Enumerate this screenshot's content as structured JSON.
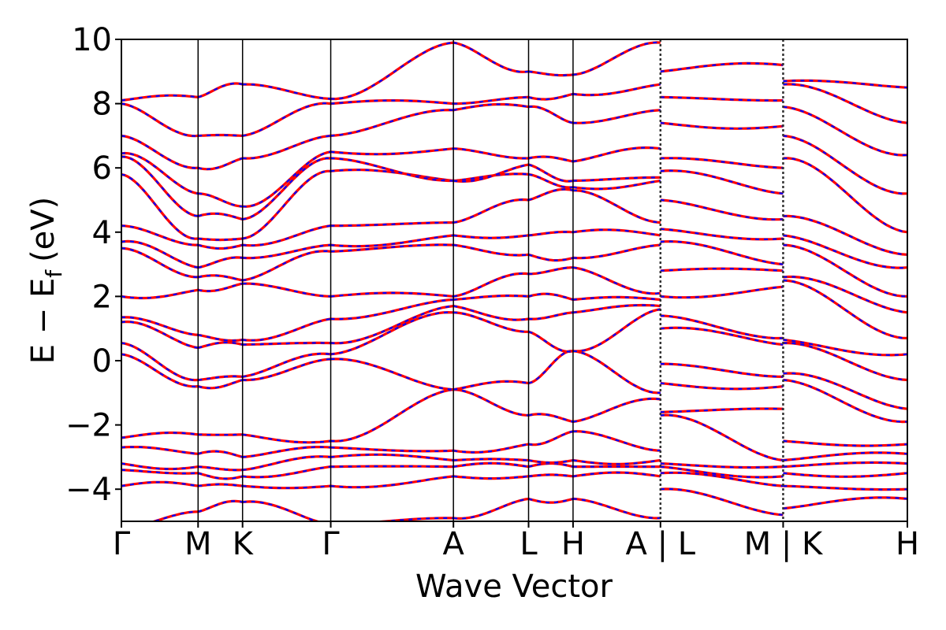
{
  "chart_data": {
    "type": "line",
    "title": "",
    "xlabel": "Wave Vector",
    "ylabel": "E − E_f (eV)",
    "ylabel_parts": {
      "main": "E − E",
      "sub": "f",
      "unit": "(eV)"
    },
    "ylim": [
      -5,
      10
    ],
    "yticks": [
      10,
      8,
      6,
      4,
      2,
      0,
      -2,
      -4
    ],
    "ytick_labels": [
      "10",
      "8",
      "6",
      "4",
      "2",
      "0",
      "−2",
      "−4"
    ],
    "kpath_ticks": [
      {
        "label": "Γ",
        "x": 0.0
      },
      {
        "label": "M",
        "x": 1.0
      },
      {
        "label": "K",
        "x": 1.58
      },
      {
        "label": "Γ",
        "x": 2.73
      },
      {
        "label": "A",
        "x": 4.33
      },
      {
        "label": "L",
        "x": 5.31
      },
      {
        "label": "H",
        "x": 5.89
      },
      {
        "label": "A | L",
        "x": 7.03
      },
      {
        "label": "M | K",
        "x": 8.63
      },
      {
        "label": "H",
        "x": 10.25
      }
    ],
    "xlim": [
      0,
      10.25
    ],
    "discontinuities": [
      7.03,
      8.63
    ],
    "series_colors": {
      "solid": "#ff0000",
      "dashed": "#0000ff"
    },
    "segments": [
      {
        "x0": 0.0,
        "x1": 1.0,
        "left": [
          -5.2,
          -3.9,
          -3.4,
          -3.2,
          -2.7,
          -2.4,
          0.2,
          0.55,
          1.2,
          1.35,
          2.0,
          3.5,
          3.7,
          4.2,
          5.8,
          6.35,
          6.45,
          7.0,
          8.0,
          8.1
        ],
        "right": [
          -4.7,
          -3.9,
          -3.5,
          -3.3,
          -2.9,
          -2.3,
          -0.8,
          -0.6,
          0.4,
          0.8,
          2.2,
          2.6,
          2.9,
          3.6,
          3.8,
          4.5,
          5.2,
          6.0,
          7.0,
          8.2
        ]
      },
      {
        "x0": 1.0,
        "x1": 1.58,
        "left": [
          -4.7,
          -3.9,
          -3.5,
          -3.3,
          -2.9,
          -2.3,
          -0.8,
          -0.6,
          0.4,
          0.8,
          2.2,
          2.6,
          2.9,
          3.6,
          3.8,
          4.5,
          5.2,
          6.0,
          7.0,
          8.2
        ],
        "right": [
          -4.4,
          -3.9,
          -3.6,
          -3.4,
          -3.0,
          -2.3,
          -0.6,
          -0.5,
          0.5,
          0.65,
          2.4,
          2.5,
          3.2,
          3.6,
          3.8,
          4.4,
          4.8,
          6.3,
          7.0,
          8.6
        ]
      },
      {
        "x0": 1.58,
        "x1": 2.73,
        "left": [
          -4.4,
          -3.9,
          -3.6,
          -3.4,
          -3.0,
          -2.3,
          -0.6,
          -0.5,
          0.5,
          0.65,
          2.4,
          2.5,
          3.2,
          3.6,
          3.8,
          4.4,
          4.8,
          6.3,
          7.0,
          8.6
        ],
        "right": [
          -5.1,
          -3.9,
          -3.3,
          -3.0,
          -2.7,
          -2.5,
          0.05,
          0.2,
          0.55,
          1.3,
          2.0,
          3.4,
          3.6,
          4.2,
          5.9,
          6.3,
          6.5,
          7.0,
          8.0,
          8.15
        ]
      },
      {
        "x0": 2.73,
        "x1": 4.33,
        "left": [
          -5.1,
          -3.9,
          -3.3,
          -3.0,
          -2.7,
          -2.5,
          0.05,
          0.2,
          0.55,
          1.3,
          2.0,
          3.4,
          3.6,
          4.2,
          5.9,
          6.3,
          6.5,
          7.0,
          8.0,
          8.15
        ],
        "right": [
          -4.9,
          -3.6,
          -3.3,
          -3.1,
          -2.8,
          -0.9,
          -0.9,
          1.5,
          1.7,
          1.9,
          2.0,
          3.6,
          3.9,
          4.3,
          5.6,
          5.6,
          6.6,
          7.8,
          8.0,
          9.9
        ]
      },
      {
        "x0": 4.33,
        "x1": 5.31,
        "left": [
          -4.9,
          -3.6,
          -3.3,
          -3.1,
          -2.8,
          -0.9,
          -0.9,
          1.5,
          1.7,
          1.9,
          2.0,
          3.6,
          3.9,
          4.3,
          5.6,
          5.6,
          6.6,
          7.8,
          8.0,
          9.9
        ],
        "right": [
          -4.3,
          -3.6,
          -3.3,
          -3.1,
          -2.6,
          -1.7,
          -0.7,
          0.9,
          1.3,
          2.0,
          2.7,
          3.3,
          3.9,
          5.0,
          5.8,
          6.1,
          6.3,
          7.9,
          8.2,
          9.0
        ]
      },
      {
        "x0": 5.31,
        "x1": 5.89,
        "left": [
          -4.3,
          -3.6,
          -3.3,
          -3.1,
          -2.6,
          -1.7,
          -0.7,
          0.9,
          1.3,
          2.0,
          2.7,
          3.3,
          3.9,
          5.0,
          5.8,
          6.1,
          6.3,
          7.9,
          8.2,
          9.0
        ],
        "right": [
          -4.3,
          -3.6,
          -3.3,
          -3.1,
          -2.2,
          -1.9,
          0.3,
          0.3,
          1.5,
          1.9,
          2.9,
          3.2,
          4.0,
          5.3,
          5.4,
          5.6,
          6.2,
          7.4,
          8.3,
          8.9
        ]
      },
      {
        "x0": 5.89,
        "x1": 7.03,
        "left": [
          -4.3,
          -3.6,
          -3.3,
          -3.1,
          -2.2,
          -1.9,
          0.3,
          0.3,
          1.5,
          1.9,
          2.9,
          3.2,
          4.0,
          5.3,
          5.4,
          5.6,
          6.2,
          7.4,
          8.3,
          8.9
        ],
        "right": [
          -4.9,
          -3.6,
          -3.3,
          -3.1,
          -2.8,
          -1.2,
          -1.0,
          1.6,
          1.7,
          1.9,
          2.1,
          3.6,
          3.9,
          4.3,
          5.6,
          5.7,
          6.6,
          7.8,
          8.6,
          9.9
        ]
      },
      {
        "x0": 7.03,
        "x1": 8.63,
        "left": [
          -4.0,
          -3.5,
          -3.3,
          -3.2,
          -1.7,
          -1.6,
          -0.7,
          -0.1,
          1.0,
          1.4,
          2.0,
          2.8,
          3.7,
          4.1,
          5.0,
          5.9,
          6.3,
          7.4,
          8.2,
          9.0
        ],
        "right": [
          -4.8,
          -3.9,
          -3.6,
          -3.3,
          -3.1,
          -1.5,
          -0.8,
          -0.5,
          0.5,
          0.7,
          2.3,
          2.8,
          3.0,
          3.8,
          4.4,
          5.2,
          6.0,
          7.3,
          8.1,
          9.2
        ]
      },
      {
        "x0": 8.63,
        "x1": 10.25,
        "left": [
          -4.6,
          -3.9,
          -3.5,
          -3.3,
          -3.1,
          -2.5,
          -0.6,
          -0.4,
          0.55,
          0.65,
          2.5,
          2.6,
          3.6,
          3.9,
          4.5,
          6.3,
          7.0,
          7.9,
          8.6,
          8.7
        ],
        "right": [
          -4.3,
          -4.0,
          -3.5,
          -3.2,
          -2.9,
          -2.6,
          -1.9,
          -1.5,
          -0.6,
          0.2,
          0.7,
          1.5,
          2.0,
          2.9,
          3.3,
          4.0,
          5.2,
          6.4,
          7.4,
          8.5
        ]
      }
    ]
  }
}
